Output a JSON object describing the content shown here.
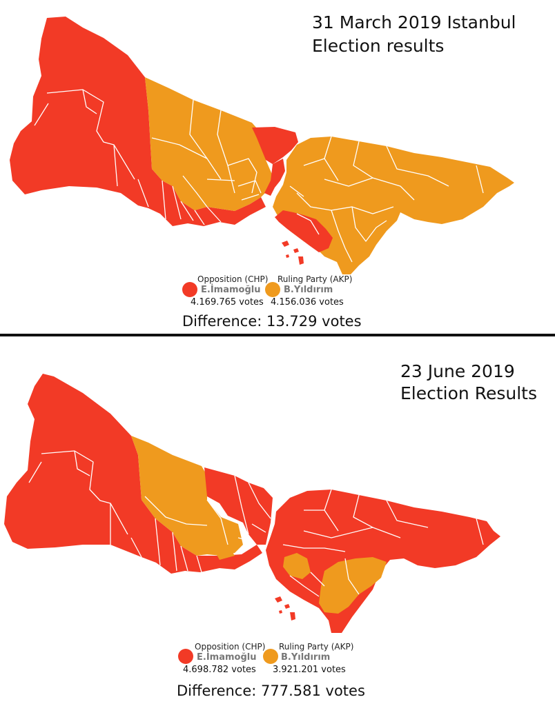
{
  "maps": [
    {
      "title_line1": "31 March 2019 Istanbul",
      "title_line2": "Election results",
      "legend": {
        "opposition": {
          "party": "Opposition (CHP)",
          "candidate": "E.İmamoğlu",
          "votes": "4.169.765 votes",
          "color": "#f23a26"
        },
        "ruling": {
          "party": "Ruling Party (AKP)",
          "candidate": "B.Yıldırım",
          "votes": "4.156.036 votes",
          "color": "#ef9a1e"
        }
      },
      "difference": "Difference: 13.729 votes"
    },
    {
      "title_line1": "23 June 2019",
      "title_line2": "Election Results",
      "legend": {
        "opposition": {
          "party": "Opposition (CHP)",
          "candidate": "E.İmamoğlu",
          "votes": "4.698.782 votes",
          "color": "#f23a26"
        },
        "ruling": {
          "party": "Ruling Party (AKP)",
          "candidate": "B.Yıldırım",
          "votes": "3.921.201 votes",
          "color": "#ef9a1e"
        }
      },
      "difference": "Difference: 777.581 votes"
    }
  ]
}
